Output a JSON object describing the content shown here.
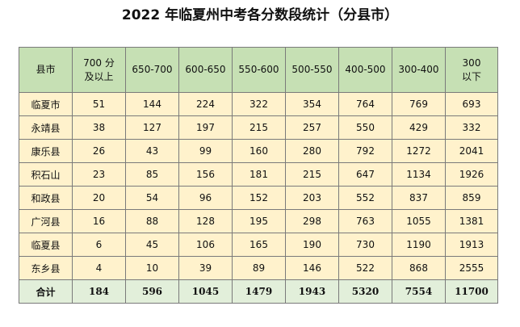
{
  "title": "2022 年临夏州中考各分数段统计（分县市）",
  "table": {
    "headers": [
      "县市",
      "700 分及以上",
      "650-700",
      "600-650",
      "550-600",
      "500-550",
      "400-500",
      "300-400",
      "300 以下"
    ],
    "rows": [
      {
        "county": "临夏市",
        "values": [
          "51",
          "144",
          "224",
          "322",
          "354",
          "764",
          "769",
          "693"
        ]
      },
      {
        "county": "永靖县",
        "values": [
          "38",
          "127",
          "197",
          "215",
          "257",
          "550",
          "429",
          "332"
        ]
      },
      {
        "county": "康乐县",
        "values": [
          "26",
          "43",
          "99",
          "160",
          "280",
          "792",
          "1272",
          "2041"
        ]
      },
      {
        "county": "积石山",
        "values": [
          "23",
          "85",
          "156",
          "181",
          "215",
          "647",
          "1134",
          "1926"
        ]
      },
      {
        "county": "和政县",
        "values": [
          "20",
          "54",
          "96",
          "152",
          "203",
          "552",
          "837",
          "859"
        ]
      },
      {
        "county": "广河县",
        "values": [
          "16",
          "88",
          "128",
          "195",
          "298",
          "763",
          "1055",
          "1381"
        ]
      },
      {
        "county": "临夏县",
        "values": [
          "6",
          "45",
          "106",
          "165",
          "190",
          "730",
          "1190",
          "1913"
        ]
      },
      {
        "county": "东乡县",
        "values": [
          "4",
          "10",
          "39",
          "89",
          "146",
          "522",
          "868",
          "2555"
        ]
      }
    ],
    "total": {
      "label": "合计",
      "values": [
        "184",
        "596",
        "1045",
        "1479",
        "1943",
        "5320",
        "7554",
        "11700"
      ]
    }
  },
  "colors": {
    "header_bg": "#c6e0b4",
    "body_bg": "#fff2cc",
    "total_bg": "#e2efda",
    "border": "#7a7a7a"
  }
}
